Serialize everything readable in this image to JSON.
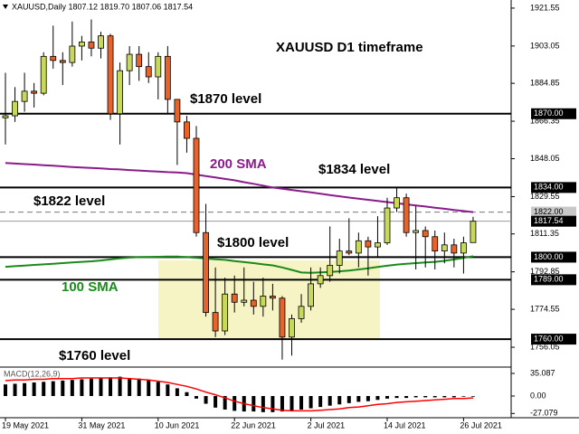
{
  "chart_data": [
    {
      "type": "candlestick",
      "header": "XAUUSD,Daily 1807.12 1819.70 1807.06 1817.54",
      "title": "XAUUSD D1 timeframe",
      "x": [
        "19 May 2021",
        "20 May 2021",
        "21 May 2021",
        "24 May 2021",
        "25 May 2021",
        "26 May 2021",
        "27 May 2021",
        "28 May 2021",
        "31 May 2021",
        "1 Jun 2021",
        "2 Jun 2021",
        "3 Jun 2021",
        "4 Jun 2021",
        "7 Jun 2021",
        "8 Jun 2021",
        "9 Jun 2021",
        "10 Jun 2021",
        "11 Jun 2021",
        "14 Jun 2021",
        "15 Jun 2021",
        "16 Jun 2021",
        "17 Jun 2021",
        "18 Jun 2021",
        "21 Jun 2021",
        "22 Jun 2021",
        "23 Jun 2021",
        "24 Jun 2021",
        "25 Jun 2021",
        "28 Jun 2021",
        "29 Jun 2021",
        "30 Jun 2021",
        "1 Jul 2021",
        "2 Jul 2021",
        "5 Jul 2021",
        "6 Jul 2021",
        "7 Jul 2021",
        "8 Jul 2021",
        "9 Jul 2021",
        "12 Jul 2021",
        "13 Jul 2021",
        "14 Jul 2021",
        "15 Jul 2021",
        "16 Jul 2021",
        "19 Jul 2021",
        "20 Jul 2021",
        "21 Jul 2021",
        "22 Jul 2021",
        "23 Jul 2021",
        "26 Jul 2021",
        "27 Jul 2021"
      ],
      "open": [
        1868,
        1869,
        1876,
        1881,
        1880,
        1898,
        1896,
        1895,
        1903,
        1905,
        1902,
        1908,
        1870,
        1891,
        1899,
        1893,
        1888,
        1898,
        1877,
        1866,
        1858,
        1812,
        1773,
        1764,
        1782,
        1778,
        1779,
        1776,
        1781,
        1780,
        1761,
        1770,
        1776,
        1787,
        1791,
        1796,
        1803,
        1802,
        1808,
        1805,
        1807,
        1824,
        1829,
        1812,
        1813,
        1810,
        1803,
        1806,
        1802,
        1807.12
      ],
      "high": [
        1890,
        1883,
        1890,
        1885,
        1900,
        1913,
        1900,
        1915,
        1908,
        1916,
        1910,
        1909,
        1895,
        1903,
        1903,
        1900,
        1900,
        1903,
        1877,
        1869,
        1864,
        1826,
        1795,
        1790,
        1791,
        1795,
        1788,
        1790,
        1787,
        1781,
        1772,
        1782,
        1795,
        1795,
        1815,
        1809,
        1819,
        1812,
        1810,
        1820,
        1829,
        1834,
        1831,
        1825,
        1815,
        1813,
        1812,
        1809,
        1810,
        1819.7
      ],
      "low": [
        1855,
        1866,
        1871,
        1873,
        1879,
        1892,
        1884,
        1893,
        1896,
        1898,
        1897,
        1867,
        1855,
        1884,
        1886,
        1885,
        1877,
        1870,
        1845,
        1851,
        1810,
        1771,
        1761,
        1762,
        1773,
        1776,
        1772,
        1771,
        1774,
        1750,
        1752,
        1768,
        1774,
        1785,
        1788,
        1792,
        1801,
        1795,
        1791,
        1800,
        1806,
        1822,
        1810,
        1794,
        1795,
        1794,
        1797,
        1795,
        1792,
        1807.06
      ],
      "close": [
        1869,
        1876,
        1881,
        1880,
        1898,
        1896,
        1895,
        1903,
        1905,
        1902,
        1908,
        1870,
        1891,
        1899,
        1893,
        1888,
        1898,
        1877,
        1866,
        1858,
        1812,
        1773,
        1764,
        1782,
        1778,
        1779,
        1776,
        1781,
        1780,
        1761,
        1770,
        1776,
        1787,
        1791,
        1796,
        1803,
        1802,
        1808,
        1805,
        1807,
        1824,
        1829,
        1812,
        1813,
        1810,
        1803,
        1806,
        1802,
        1807,
        1817.54
      ],
      "up_color": "#c8d85a",
      "down_color": "#e8622a",
      "series": [
        {
          "name": "200 SMA",
          "color": "#8b1a8b",
          "values": [
            1846.0,
            1845.7,
            1845.4,
            1845.2,
            1844.9,
            1844.6,
            1844.3,
            1844.0,
            1843.8,
            1843.5,
            1843.3,
            1843.0,
            1842.8,
            1842.5,
            1842.3,
            1842.0,
            1841.8,
            1841.5,
            1841.3,
            1841.0,
            1840.3,
            1839.6,
            1838.9,
            1838.2,
            1837.5,
            1836.6,
            1835.8,
            1834.9,
            1834.0,
            1833.4,
            1832.8,
            1832.2,
            1831.6,
            1831.0,
            1830.3,
            1829.7,
            1829.1,
            1828.5,
            1828.0,
            1827.4,
            1826.9,
            1826.3,
            1825.8,
            1825.2,
            1824.7,
            1824.1,
            1823.6,
            1823.0,
            1822.5,
            1822.0
          ]
        },
        {
          "name": "100 SMA",
          "color": "#1a8a1a",
          "values": [
            1795.3,
            1795.6,
            1795.9,
            1796.2,
            1796.5,
            1796.8,
            1797.1,
            1797.4,
            1797.7,
            1798.0,
            1798.4,
            1798.9,
            1799.4,
            1799.8,
            1800.0,
            1800.1,
            1800.2,
            1800.3,
            1800.3,
            1800.0,
            1799.7,
            1799.3,
            1799.0,
            1798.7,
            1798.1,
            1797.6,
            1797.1,
            1796.5,
            1796.0,
            1795.0,
            1793.8,
            1792.5,
            1792.4,
            1792.6,
            1792.8,
            1793.1,
            1793.5,
            1794.0,
            1794.6,
            1795.2,
            1795.8,
            1796.4,
            1796.8,
            1797.1,
            1797.4,
            1797.7,
            1798.2,
            1798.9,
            1799.6,
            1800.5
          ]
        }
      ],
      "levels": [
        {
          "value": 1870,
          "label": "1870.00",
          "name": "$1870 level",
          "style": "solid"
        },
        {
          "value": 1834,
          "label": "1834.00",
          "name": "$1834 level",
          "style": "solid"
        },
        {
          "value": 1822,
          "label": "1822.00",
          "name": "$1822 level",
          "style": "dashed"
        },
        {
          "value": 1817.54,
          "style": "price"
        },
        {
          "value": 1800,
          "label": "1800.00",
          "name": "$1800 level",
          "style": "solid"
        },
        {
          "value": 1789,
          "label": "1789.00",
          "style": "solid"
        },
        {
          "value": 1760,
          "label": "1760.00",
          "name": "$1760 level",
          "style": "solid"
        }
      ],
      "ylim": [
        1746.8,
        1925.5
      ],
      "yticks": [
        1921.55,
        1903.05,
        1884.85,
        1866.35,
        1848.05,
        1829.55,
        1811.35,
        1792.85,
        1774.55,
        1756.05
      ],
      "xticks": [
        "19 May 2021",
        "31 May 2021",
        "10 Jun 2021",
        "22 Jun 2021",
        "2 Jul 2021",
        "14 Jul 2021",
        "26 Jul 2021"
      ]
    },
    {
      "type": "macd",
      "title": "MACD(12,26,9)",
      "histogram": {
        "color": "#000000",
        "values": [
          18,
          19,
          20,
          21,
          22,
          23,
          24,
          25,
          26,
          27,
          28,
          29,
          30,
          28,
          27,
          25,
          22,
          18,
          12,
          6,
          -4,
          -12,
          -18,
          -21,
          -23,
          -24,
          -24,
          -25,
          -25,
          -24,
          -23,
          -21,
          -19,
          -17,
          -15,
          -13,
          -11,
          -9,
          -8,
          -6,
          -4,
          -3,
          -3,
          -2,
          -2,
          -2,
          -2,
          -2,
          -1,
          -1
        ]
      },
      "signal": {
        "color": "#ff0000",
        "values": [
          24,
          25,
          25,
          26,
          26,
          27,
          27,
          27,
          28,
          28,
          28,
          28,
          28,
          27,
          26,
          25,
          23,
          21,
          18,
          15,
          11,
          6,
          2,
          -3,
          -8,
          -12,
          -15,
          -18,
          -20,
          -22,
          -23,
          -23,
          -23,
          -22,
          -21,
          -20,
          -18,
          -17,
          -15,
          -13,
          -12,
          -10,
          -9,
          -8,
          -7,
          -6,
          -5,
          -4,
          -4,
          -3
        ]
      },
      "ylim": [
        -33.7,
        43.5
      ],
      "yticks": [
        35.087,
        {
          "value": 0,
          "label": "0.00"
        },
        -27.079
      ]
    }
  ]
}
